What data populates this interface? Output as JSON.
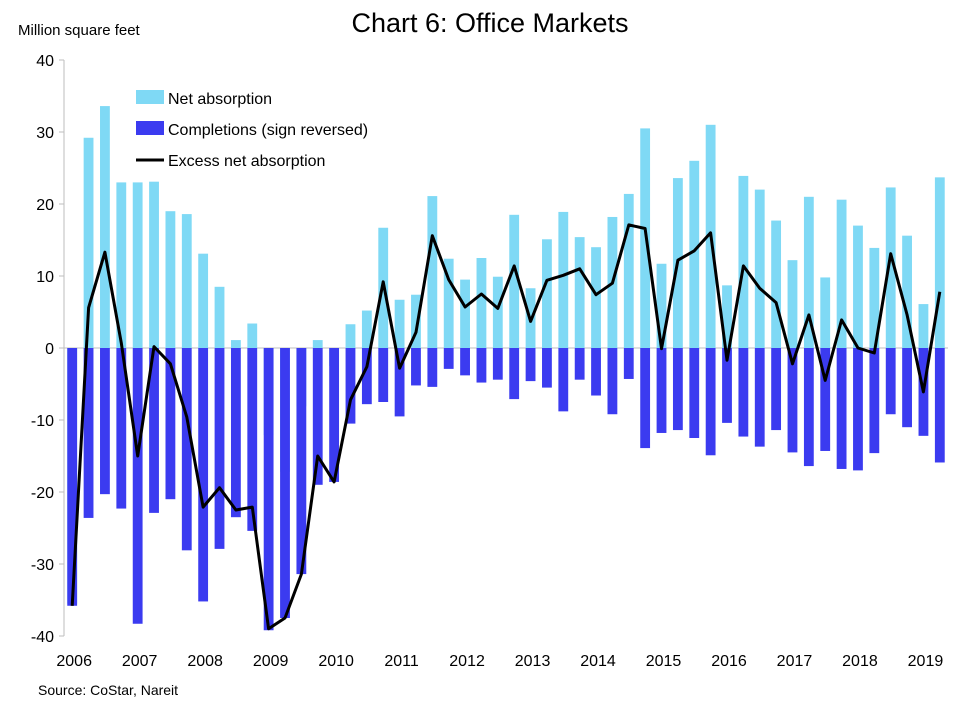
{
  "title": "Chart 6: Office Markets",
  "y_unit": "Million square feet",
  "source": "Source: CoStar, Nareit",
  "colors": {
    "net_absorption": "#7fd9f5",
    "completions": "#3b3bf0",
    "excess": "#000000"
  },
  "chart_data": {
    "type": "bar",
    "ylim": [
      -40,
      40
    ],
    "yticks": [
      40,
      30,
      20,
      10,
      0,
      -10,
      -20,
      -30,
      -40
    ],
    "xticks": [
      "2006",
      "2007",
      "2008",
      "2009",
      "2010",
      "2011",
      "2012",
      "2013",
      "2014",
      "2015",
      "2016",
      "2017",
      "2018",
      "2019"
    ],
    "x_start_year": 2006,
    "series": [
      {
        "name": "Net absorption",
        "values": [
          -35.5,
          29.2,
          33.6,
          23.0,
          23.0,
          23.1,
          19.0,
          18.6,
          13.1,
          8.5,
          1.1,
          3.4,
          -12.1,
          -17.2,
          -8.1,
          1.1,
          -2.5,
          3.3,
          5.2,
          16.7,
          6.7,
          7.4,
          21.1,
          12.4,
          9.5,
          12.5,
          9.9,
          18.5,
          8.3,
          15.1,
          18.9,
          15.4,
          14.0,
          18.2,
          21.4,
          30.5,
          11.7,
          23.6,
          26.0,
          31.0,
          8.7,
          23.9,
          22.0,
          17.7,
          12.2,
          21.0,
          9.8,
          20.6,
          17.0,
          13.9,
          22.3,
          15.6,
          6.1,
          23.7
        ]
      },
      {
        "name": "Completions (sign reversed)",
        "values": [
          -35.8,
          -23.6,
          -20.3,
          -22.3,
          -38.3,
          -22.9,
          -21.0,
          -28.1,
          -35.2,
          -27.9,
          -23.5,
          -25.4,
          -39.2,
          -37.5,
          -31.4,
          -19.0,
          -18.6,
          -10.5,
          -7.8,
          -7.5,
          -9.5,
          -5.2,
          -5.4,
          -2.9,
          -3.8,
          -4.8,
          -4.4,
          -7.1,
          -4.6,
          -5.5,
          -8.8,
          -4.4,
          -6.6,
          -9.2,
          -4.3,
          -13.9,
          -11.8,
          -11.4,
          -12.5,
          -14.9,
          -10.4,
          -12.3,
          -13.7,
          -11.4,
          -14.5,
          -16.4,
          -14.3,
          -16.8,
          -17.0,
          -14.6,
          -9.2,
          -11.0,
          -12.2,
          -15.9
        ]
      },
      {
        "name": "Excess net absorption",
        "values": [
          -35.8,
          5.6,
          13.3,
          0.7,
          -15.0,
          0.2,
          -2.2,
          -9.6,
          -22.1,
          -19.4,
          -22.5,
          -22.1,
          -39.0,
          -37.5,
          -31.4,
          -15.0,
          -18.6,
          -7.2,
          -2.6,
          9.2,
          -2.8,
          2.2,
          15.6,
          9.5,
          5.7,
          7.5,
          5.5,
          11.4,
          3.7,
          9.4,
          10.1,
          11.0,
          7.4,
          9.0,
          17.1,
          16.6,
          -0.1,
          12.2,
          13.5,
          16.0,
          -1.7,
          11.4,
          8.3,
          6.3,
          -2.2,
          4.6,
          -4.5,
          3.9,
          0.0,
          -0.7,
          13.1,
          4.6,
          -6.1,
          7.8
        ]
      }
    ]
  }
}
